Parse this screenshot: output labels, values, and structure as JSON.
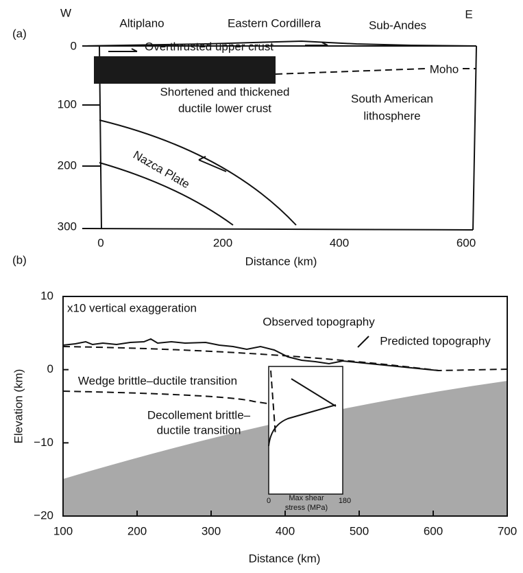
{
  "panel_a": {
    "label": "(a)",
    "west": "W",
    "east": "E",
    "regions": [
      "Altiplano",
      "Eastern Cordillera",
      "Sub-Andes"
    ],
    "upper_crust": "Overthrusted upper crust",
    "moho": "Moho",
    "lower_crust": [
      "Shortened and thickened",
      "ductile lower crust"
    ],
    "lithosphere": [
      "South American",
      "lithosphere"
    ],
    "plate": "Nazca Plate",
    "y_ticks": [
      "0",
      "100",
      "200",
      "300"
    ],
    "x_ticks": [
      "0",
      "200",
      "400",
      "600"
    ],
    "x_axis_label": "Distance (km)"
  },
  "panel_b": {
    "label": "(b)",
    "exaggeration": "x10 vertical exaggeration",
    "observed": "Observed topography",
    "predicted": "Predicted topography",
    "wedge": "Wedge brittle–ductile transition",
    "decollement": [
      "Decollement brittle–",
      "ductile transition"
    ],
    "inset_ticks": [
      "0",
      "180"
    ],
    "inset_label": [
      "Max shear",
      "stress (MPa)"
    ],
    "y_ticks": [
      "10",
      "0",
      "−10",
      "−20"
    ],
    "x_ticks": [
      "100",
      "200",
      "300",
      "400",
      "500",
      "600",
      "700"
    ],
    "x_axis_label": "Distance (km)",
    "y_axis_label": "Elevation (km)"
  }
}
